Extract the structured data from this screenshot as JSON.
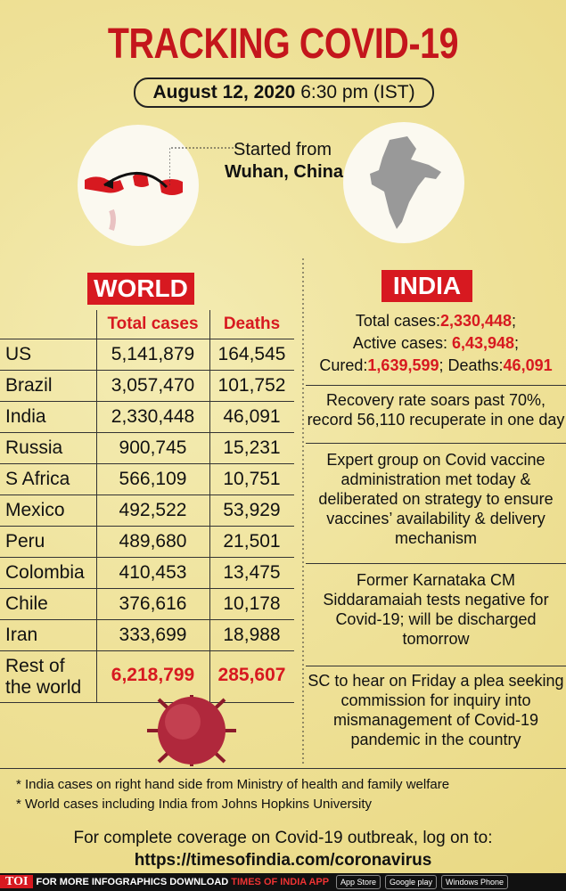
{
  "header": {
    "title": "TRACKING COVID-19",
    "date": "August 12, 2020",
    "time": "6:30 pm (IST)"
  },
  "map": {
    "caption_line1": "Started from",
    "caption_line2": "Wuhan, China"
  },
  "world": {
    "label": "WORLD",
    "table": {
      "columns": [
        "Total cases",
        "Deaths"
      ],
      "rows": [
        [
          "US",
          "5,141,879",
          "164,545"
        ],
        [
          "Brazil",
          "3,057,470",
          "101,752"
        ],
        [
          "India",
          "2,330,448",
          "46,091"
        ],
        [
          "Russia",
          "900,745",
          "15,231"
        ],
        [
          "S Africa",
          "566,109",
          "10,751"
        ],
        [
          "Mexico",
          "492,522",
          "53,929"
        ],
        [
          "Peru",
          "489,680",
          "21,501"
        ],
        [
          "Colombia",
          "410,453",
          "13,475"
        ],
        [
          "Chile",
          "376,616",
          "10,178"
        ],
        [
          "Iran",
          "333,699",
          "18,988"
        ],
        [
          "Rest of the world",
          "6,218,799",
          "285,607"
        ]
      ]
    }
  },
  "india": {
    "label": "INDIA",
    "stats": [
      [
        {
          "text": "Total cases:"
        },
        {
          "text": "2,330,448",
          "emphasis": true
        },
        {
          "text": ";"
        }
      ],
      [
        {
          "text": "Active cases: "
        },
        {
          "text": "6,43,948",
          "emphasis": true
        },
        {
          "text": ";"
        }
      ],
      [
        {
          "text": "Cured:"
        },
        {
          "text": "1,639,599",
          "emphasis": true
        },
        {
          "text": "; Deaths:"
        },
        {
          "text": "46,091",
          "emphasis": true
        }
      ]
    ],
    "news": [
      "Recovery rate soars past 70%, record 56,110 recuperate in one day",
      "Expert group on Covid vaccine administration met today & deliberated on strategy to ensure vaccines’ availability & delivery mechanism",
      "Former Karnataka CM Siddaramaiah tests negative for Covid-19; will be discharged tomorrow",
      "SC to hear on Friday a plea seeking commission for inquiry into mismanagement of Covid-19 pandemic in the country"
    ]
  },
  "footnotes": [
    "* India cases on right hand side from Ministry of health and family welfare",
    "* World cases including India from Johns Hopkins University"
  ],
  "footer": {
    "text": "For complete coverage on Covid-19 outbreak, log on to:",
    "url": "https://timesofindia.com/coronavirus"
  },
  "bottom_bar": {
    "brand": "TOI",
    "promo": "FOR MORE INFOGRAPHICS DOWNLOAD",
    "app": "TIMES OF INDIA APP",
    "stores": [
      "App Store",
      "Google play",
      "Windows Phone"
    ]
  }
}
